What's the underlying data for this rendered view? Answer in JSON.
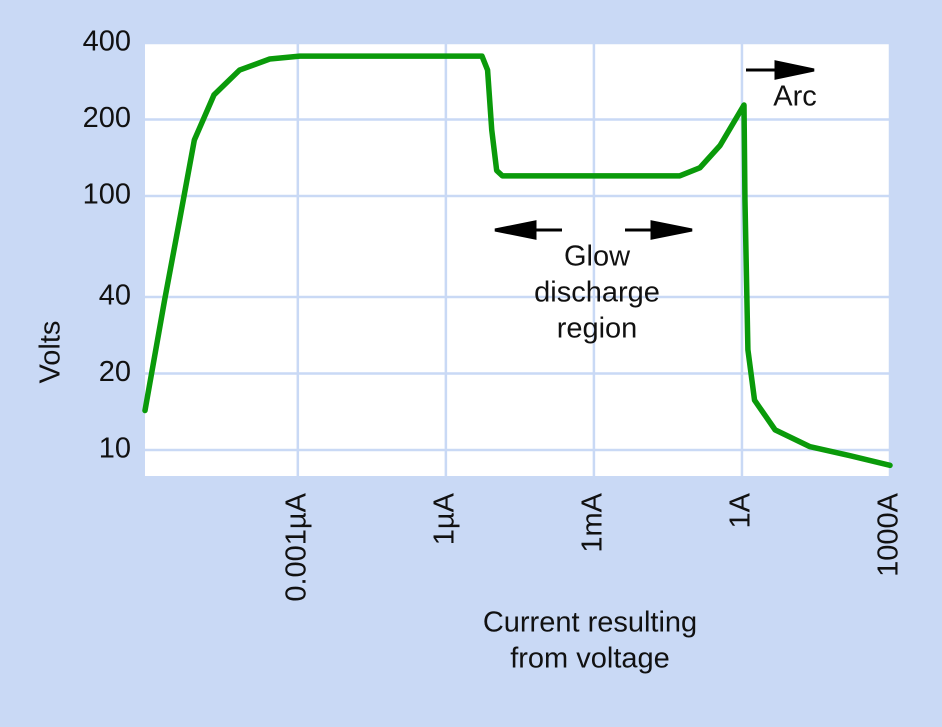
{
  "chart_data": {
    "type": "line",
    "ylabel": "Volts",
    "xlabel": [
      "Current resulting",
      "from voltage"
    ],
    "annotations": [
      [
        "Glow",
        "discharge",
        "region"
      ],
      [
        "Arc"
      ]
    ],
    "xscale": "log",
    "yscale": "log",
    "grid": true,
    "xlim": [
      8e-13,
      1000
    ],
    "ylim": [
      7.9,
      400
    ],
    "xticks": [
      {
        "value": 1e-09,
        "label": "0.001µA"
      },
      {
        "value": 1e-06,
        "label": "1µA"
      },
      {
        "value": 0.001,
        "label": "1mA"
      },
      {
        "value": 1,
        "label": "1A"
      },
      {
        "value": 1000,
        "label": "1000A"
      }
    ],
    "yticks": [
      10,
      20,
      40,
      100,
      200,
      400
    ],
    "x": [
      8e-13,
      2e-12,
      4e-12,
      8e-12,
      2e-11,
      6.6e-11,
      2.7e-10,
      1.1e-09,
      5.4e-06,
      7e-06,
      8.5e-06,
      1.07e-05,
      1.4e-05,
      0.055,
      0.14,
      0.36,
      1.1,
      1.15,
      1.32,
      1.8,
      4.7,
      24,
      155,
      1000
    ],
    "series": [
      {
        "color": "#0a9a0a",
        "values": [
          14.3,
          39,
          80,
          166,
          250,
          313,
          346,
          355,
          355,
          313,
          182,
          126,
          120,
          120,
          129,
          158,
          228,
          97,
          24.8,
          15.7,
          12,
          10.3,
          9.5,
          8.7
        ]
      }
    ]
  }
}
